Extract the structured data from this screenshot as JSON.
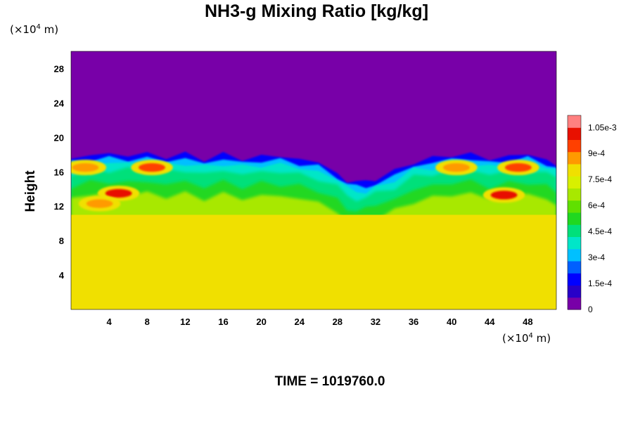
{
  "chart_data": {
    "type": "heatmap",
    "title": "NH3-g Mixing Ratio [kg/kg]",
    "ylabel": "Height",
    "xlabel": "",
    "x_unit": {
      "prefix": "(×10",
      "exp": "4",
      "suffix": " m)"
    },
    "y_unit": {
      "prefix": "(×10",
      "exp": "4",
      "suffix": " m)"
    },
    "x_ticks": [
      "4",
      "8",
      "12",
      "16",
      "20",
      "24",
      "28",
      "32",
      "36",
      "40",
      "44",
      "48"
    ],
    "y_ticks": [
      "4",
      "8",
      "12",
      "16",
      "20",
      "24",
      "28"
    ],
    "xlim": [
      0,
      51
    ],
    "ylim": [
      0,
      30
    ],
    "colorbar": {
      "min": 0,
      "max": 0.00112,
      "tick_values": [
        0,
        0.00015,
        0.0003,
        0.00045,
        0.0006,
        0.00075,
        0.0009,
        0.00105
      ],
      "tick_labels": [
        "0",
        "1.5e-4",
        "3e-4",
        "4.5e-4",
        "6e-4",
        "7.5e-4",
        "9e-4",
        "1.05e-3"
      ],
      "colors": [
        "#7800a8",
        "#2800c8",
        "#0000ff",
        "#0060ff",
        "#00c0ff",
        "#00e6c8",
        "#00e07a",
        "#20d820",
        "#60e000",
        "#a8e800",
        "#d8f000",
        "#f0e000",
        "#ff9a00",
        "#ff4000",
        "#e81000",
        "#ff8080"
      ]
    },
    "regions": {
      "upper_value": 0,
      "lower_value": 0.00078,
      "lower_layer_top_height": 11,
      "mixing_layer_top_height_profile": {
        "x": [
          0,
          2,
          4,
          6,
          8,
          10,
          12,
          14,
          16,
          18,
          20,
          22,
          24,
          26,
          28,
          29,
          30,
          31,
          32,
          34,
          36,
          38,
          40,
          42,
          44,
          46,
          48,
          50,
          51
        ],
        "y": [
          17.5,
          18,
          18,
          18,
          18,
          17.8,
          18,
          17.5,
          18,
          17.5,
          17.8,
          17.8,
          17.5,
          17,
          16,
          15,
          14.7,
          14.8,
          15.2,
          16,
          17.2,
          17.5,
          18,
          18,
          17.5,
          17.8,
          18,
          17.5,
          17
        ]
      },
      "red_patches": [
        {
          "x": 8.5,
          "y": 16.5,
          "value": 0.00096
        },
        {
          "x": 5,
          "y": 13.5,
          "value": 0.00098
        },
        {
          "x": 3,
          "y": 12.3,
          "value": 0.0009
        },
        {
          "x": 1.5,
          "y": 16.5,
          "value": 0.00088
        },
        {
          "x": 40.5,
          "y": 16.5,
          "value": 0.0009
        },
        {
          "x": 47,
          "y": 16.5,
          "value": 0.00095
        },
        {
          "x": 45.5,
          "y": 13.3,
          "value": 0.001
        }
      ]
    }
  },
  "footer": {
    "time_label": "TIME = 1019760.0"
  }
}
